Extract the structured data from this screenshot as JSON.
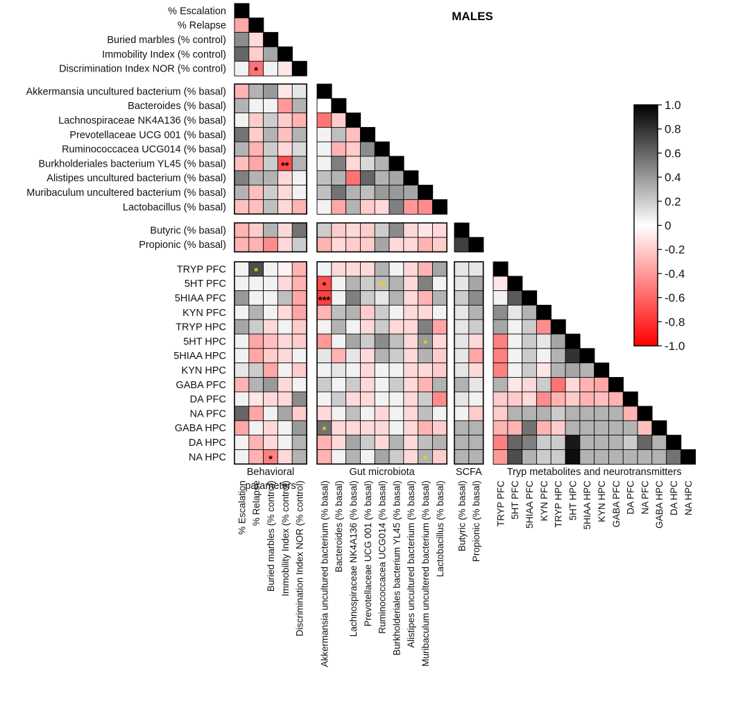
{
  "chart_data": {
    "type": "heatmap",
    "title": "MALES",
    "variables": [
      "% Escalation",
      "% Relapse",
      "Buried marbles (% control)",
      "Immobility Index (% control)",
      "Discrimination Index NOR (% control)",
      "Akkermansia uncultured bacterium (% basal)",
      "Bacteroides (% basal)",
      "Lachnospiraceae NK4A136 (% basal)",
      "Prevotellaceae UCG 001 (% basal)",
      "Ruminococcacea UCG014 (% basal)",
      "Burkholderiales bacterium YL45 (% basal)",
      "Alistipes uncultured bacterium (% basal)",
      "Muribaculum uncultered bacterium (% basal)",
      "Lactobacillus (% basal)",
      "Butyric (% basal)",
      "Propionic (% basal)",
      "TRYP PFC",
      "5HT PFC",
      "5HIAA PFC",
      "KYN PFC",
      "TRYP HPC",
      "5HT HPC",
      "5HIAA HPC",
      "KYN HPC",
      "GABA PFC",
      "DA PFC",
      "NA PFC",
      "GABA HPC",
      "DA HPC",
      "NA HPC"
    ],
    "groups": [
      {
        "name": "Behavioral parameters",
        "line1": "Behavioral",
        "line2": "parameters",
        "size": 5
      },
      {
        "name": "Gut microbiota",
        "line1": "Gut microbiota",
        "line2": "",
        "size": 9
      },
      {
        "name": "SCFA",
        "line1": "SCFA",
        "line2": "",
        "size": 2
      },
      {
        "name": "Tryp metabolites and neurotransmitters",
        "line1": "Tryp metabolites and neurotransmitters",
        "line2": "",
        "size": 14
      }
    ],
    "matrix": [
      [
        1.0
      ],
      [
        -0.35,
        1.0
      ],
      [
        0.45,
        -0.15,
        1.0
      ],
      [
        0.6,
        -0.2,
        0.35,
        1.0
      ],
      [
        0.05,
        -0.55,
        0.05,
        -0.1,
        1.0
      ],
      [
        -0.3,
        0.3,
        0.4,
        -0.1,
        0.1,
        1.0
      ],
      [
        0.3,
        0.05,
        0.05,
        -0.4,
        0.3,
        0.0,
        1.0
      ],
      [
        0.05,
        -0.2,
        0.2,
        -0.2,
        -0.3,
        -0.55,
        -0.2,
        1.0
      ],
      [
        0.55,
        -0.2,
        0.3,
        -0.25,
        0.3,
        0.05,
        0.25,
        -0.25,
        1.0
      ],
      [
        0.3,
        -0.3,
        0.2,
        -0.15,
        0.15,
        0.05,
        -0.3,
        -0.2,
        0.45,
        1.0
      ],
      [
        -0.25,
        -0.35,
        0.2,
        -0.7,
        0.3,
        0.05,
        0.5,
        -0.15,
        0.15,
        0.3,
        1.0
      ],
      [
        0.5,
        0.3,
        0.3,
        -0.15,
        0.05,
        0.25,
        0.3,
        -0.55,
        0.6,
        0.3,
        0.35,
        1.0
      ],
      [
        0.3,
        -0.25,
        0.2,
        -0.15,
        0.05,
        0.25,
        0.55,
        0.3,
        0.25,
        0.4,
        0.4,
        0.35,
        1.0
      ],
      [
        -0.25,
        -0.25,
        0.25,
        -0.15,
        -0.3,
        0.05,
        -0.35,
        0.3,
        -0.2,
        -0.15,
        0.5,
        -0.4,
        -0.45,
        1.0
      ],
      [
        -0.3,
        -0.2,
        0.3,
        -0.15,
        0.55,
        0.2,
        -0.2,
        -0.15,
        -0.2,
        0.2,
        0.45,
        -0.15,
        -0.1,
        -0.15,
        1.0
      ],
      [
        -0.3,
        -0.3,
        -0.45,
        -0.15,
        0.2,
        -0.3,
        -0.15,
        -0.2,
        -0.2,
        0.35,
        -0.15,
        -0.15,
        -0.3,
        -0.2,
        0.75,
        1.0
      ],
      [
        0.05,
        0.7,
        0.05,
        -0.05,
        -0.3,
        0.05,
        -0.15,
        -0.15,
        -0.15,
        0.3,
        0.05,
        -0.15,
        -0.3,
        0.35,
        0.1,
        0.1,
        1.0
      ],
      [
        0.05,
        0.05,
        0.05,
        -0.15,
        -0.3,
        -0.7,
        0.05,
        0.3,
        0.2,
        0.25,
        0.3,
        -0.15,
        0.5,
        0.05,
        0.1,
        0.35,
        -0.1,
        1.0
      ],
      [
        0.4,
        0.05,
        0.05,
        0.25,
        -0.35,
        -0.75,
        0.05,
        0.5,
        0.2,
        0.1,
        0.3,
        -0.15,
        -0.3,
        0.3,
        0.2,
        0.45,
        0.05,
        0.65,
        1.0
      ],
      [
        0.05,
        0.3,
        0.05,
        -0.15,
        -0.35,
        -0.3,
        0.25,
        0.3,
        -0.2,
        0.2,
        0.05,
        -0.15,
        -0.15,
        0.05,
        0.1,
        0.3,
        0.45,
        0.1,
        0.3,
        1.0
      ],
      [
        0.35,
        0.2,
        -0.15,
        0.05,
        -0.2,
        0.05,
        0.3,
        0.05,
        -0.15,
        0.2,
        -0.15,
        -0.15,
        0.5,
        -0.35,
        0.1,
        0.2,
        0.35,
        0.05,
        0.2,
        -0.45,
        1.0
      ],
      [
        0.05,
        -0.35,
        -0.25,
        -0.15,
        -0.2,
        -0.4,
        0.05,
        0.35,
        0.2,
        0.45,
        0.25,
        -0.15,
        0.4,
        -0.15,
        0.1,
        -0.15,
        -0.5,
        0.05,
        0.2,
        0.1,
        0.35,
        1.0
      ],
      [
        0.05,
        -0.35,
        -0.2,
        -0.15,
        0.05,
        0.1,
        -0.3,
        0.1,
        -0.15,
        0.3,
        0.2,
        -0.15,
        0.3,
        -0.2,
        0.1,
        -0.35,
        -0.5,
        0.05,
        0.2,
        0.05,
        0.3,
        0.8,
        1.0
      ],
      [
        0.1,
        0.2,
        -0.35,
        0.05,
        -0.2,
        0.05,
        0.1,
        0.05,
        -0.15,
        0.05,
        0.05,
        -0.15,
        -0.15,
        -0.2,
        0.1,
        -0.15,
        -0.5,
        0.05,
        0.2,
        -0.1,
        0.3,
        0.35,
        0.3,
        1.0
      ],
      [
        -0.3,
        0.3,
        0.4,
        -0.15,
        0.05,
        0.2,
        0.05,
        0.2,
        -0.15,
        0.05,
        0.2,
        -0.15,
        -0.3,
        0.3,
        0.3,
        0.1,
        0.3,
        -0.1,
        -0.15,
        0.2,
        -0.55,
        -0.15,
        -0.3,
        -0.35,
        1.0
      ],
      [
        0.05,
        -0.1,
        -0.15,
        -0.15,
        0.45,
        0.05,
        0.2,
        -0.15,
        -0.15,
        0.05,
        0.05,
        -0.15,
        0.2,
        -0.45,
        0.1,
        0.05,
        -0.2,
        -0.2,
        -0.15,
        -0.45,
        -0.3,
        -0.2,
        -0.3,
        -0.25,
        -0.3,
        1.0
      ],
      [
        0.6,
        -0.35,
        0.05,
        0.35,
        -0.2,
        -0.15,
        0.05,
        0.25,
        0.05,
        -0.15,
        0.05,
        -0.15,
        0.25,
        0.05,
        0.05,
        -0.2,
        -0.2,
        0.3,
        0.3,
        0.3,
        0.2,
        0.3,
        0.3,
        0.3,
        0.3,
        -0.3,
        1.0
      ],
      [
        -0.35,
        0.05,
        -0.15,
        0.05,
        0.4,
        0.55,
        -0.15,
        -0.15,
        -0.15,
        -0.15,
        0.05,
        -0.15,
        -0.3,
        -0.2,
        0.3,
        0.3,
        -0.3,
        -0.3,
        0.55,
        -0.3,
        -0.2,
        0.3,
        0.3,
        0.3,
        0.3,
        0.3,
        -0.25,
        1.0
      ],
      [
        0.05,
        -0.3,
        -0.15,
        0.05,
        0.3,
        -0.3,
        -0.15,
        0.35,
        0.2,
        -0.15,
        0.3,
        -0.15,
        0.25,
        0.3,
        0.3,
        0.3,
        -0.5,
        0.6,
        0.5,
        0.2,
        0.2,
        0.9,
        0.3,
        0.3,
        0.3,
        0.2,
        0.6,
        0.3,
        1.0
      ],
      [
        0.05,
        -0.3,
        -0.5,
        -0.15,
        0.3,
        -0.3,
        0.05,
        0.3,
        0.05,
        0.35,
        0.2,
        -0.15,
        0.3,
        -0.2,
        0.3,
        0.3,
        -0.4,
        0.7,
        0.3,
        0.2,
        0.2,
        0.95,
        0.3,
        0.3,
        0.3,
        0.3,
        0.3,
        0.3,
        0.55,
        1.0
      ]
    ],
    "significance": [
      {
        "row": 4,
        "col": 1,
        "label": "*",
        "color": "#000000"
      },
      {
        "row": 10,
        "col": 3,
        "label": "**",
        "color": "#000000"
      },
      {
        "row": 16,
        "col": 1,
        "label": "*",
        "color": "#f2d400"
      },
      {
        "row": 17,
        "col": 5,
        "label": "*",
        "color": "#000000"
      },
      {
        "row": 17,
        "col": 9,
        "label": "**",
        "color": "#f2d400"
      },
      {
        "row": 18,
        "col": 5,
        "label": "***",
        "color": "#000000"
      },
      {
        "row": 21,
        "col": 12,
        "label": "*",
        "color": "#f2d400"
      },
      {
        "row": 27,
        "col": 5,
        "label": "*",
        "color": "#f2d400"
      },
      {
        "row": 29,
        "col": 2,
        "label": "*",
        "color": "#000000"
      },
      {
        "row": 29,
        "col": 12,
        "label": "*",
        "color": "#f2d400"
      }
    ],
    "colorbar": {
      "range": [
        -1.0,
        1.0
      ],
      "ticks": [
        "1.0",
        "0.8",
        "0.6",
        "0.4",
        "0.2",
        "0",
        "-0.2",
        "-0.4",
        "-0.6",
        "-0.8",
        "-1.0"
      ],
      "positive_color": "#000000",
      "negative_color": "#ff0000",
      "zero_color": "#ffffff"
    }
  }
}
